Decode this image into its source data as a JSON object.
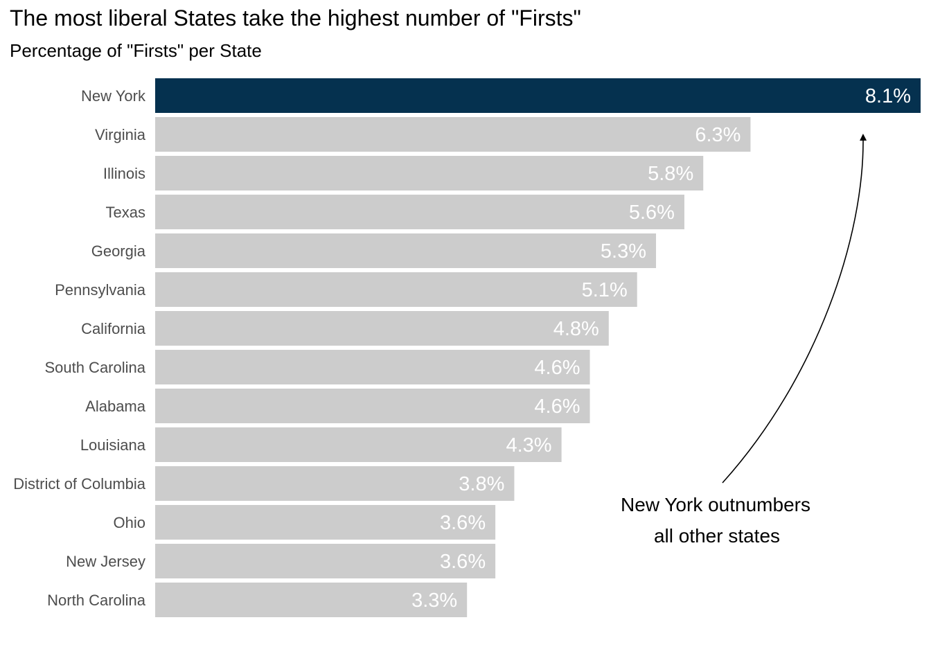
{
  "chart_data": {
    "type": "bar",
    "orientation": "horizontal",
    "title": "The most liberal States take the highest number of \"Firsts\"",
    "subtitle": "Percentage of \"Firsts\" per State",
    "xlabel": "",
    "ylabel": "",
    "grid": false,
    "categories": [
      "New York",
      "Virginia",
      "Illinois",
      "Texas",
      "Georgia",
      "Pennsylvania",
      "California",
      "South Carolina",
      "Alabama",
      "Louisiana",
      "District of Columbia",
      "Ohio",
      "New Jersey",
      "North Carolina"
    ],
    "values": [
      8.1,
      6.3,
      5.8,
      5.6,
      5.3,
      5.1,
      4.8,
      4.6,
      4.6,
      4.3,
      3.8,
      3.6,
      3.6,
      3.3
    ],
    "value_labels": [
      "8.1%",
      "6.3%",
      "5.8%",
      "5.6%",
      "5.3%",
      "5.1%",
      "4.8%",
      "4.6%",
      "4.6%",
      "4.3%",
      "3.8%",
      "3.6%",
      "3.6%",
      "3.3%"
    ],
    "xlim": [
      0,
      8.1
    ],
    "highlight": "New York",
    "colors": {
      "highlight": "#05314F",
      "default": "#CCCCCC",
      "value_label": "#FFFFFF",
      "category_label": "#4D4D4D",
      "annotation": "#000000"
    },
    "annotation": {
      "lines": [
        "New York outnumbers",
        "all other states"
      ],
      "points_to": "New York"
    }
  }
}
